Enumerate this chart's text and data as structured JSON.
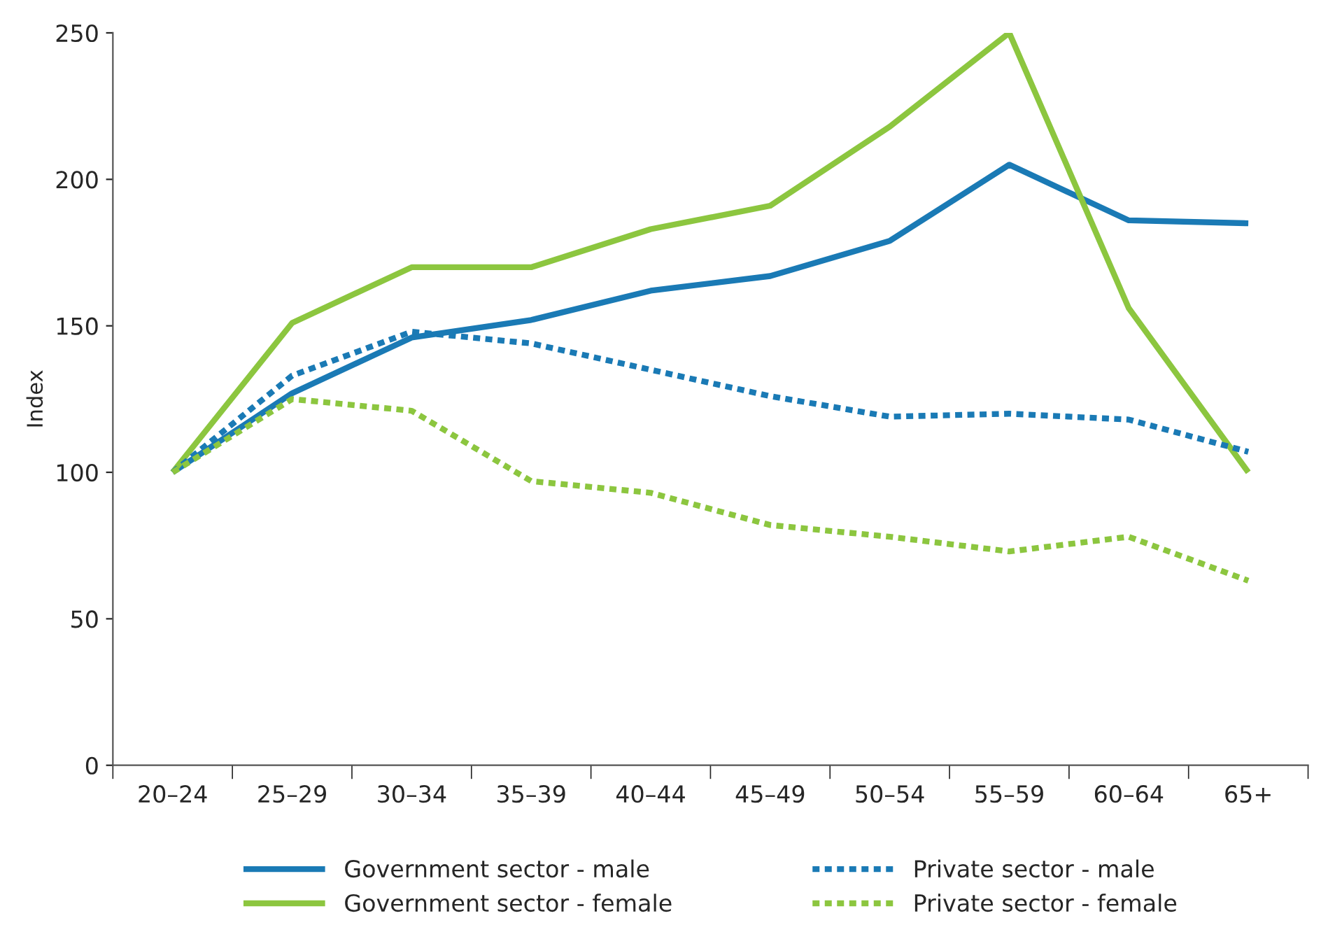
{
  "chart_data": {
    "type": "line",
    "ylabel": "Index",
    "categories": [
      "20–24",
      "25–29",
      "30–34",
      "35–39",
      "40–44",
      "45–49",
      "50–54",
      "55–59",
      "60–64",
      "65+"
    ],
    "series": [
      {
        "name": "Government sector - male",
        "color": "#1a7ab5",
        "line_style": "solid",
        "values": [
          100,
          127,
          146,
          152,
          162,
          167,
          179,
          205,
          186,
          185
        ]
      },
      {
        "name": "Government sector - female",
        "color": "#8cc63f",
        "line_style": "solid",
        "values": [
          100,
          151,
          170,
          170,
          183,
          191,
          218,
          250,
          156,
          100
        ]
      },
      {
        "name": "Private sector - male",
        "color": "#1a7ab5",
        "line_style": "dotted",
        "values": [
          100,
          133,
          148,
          144,
          135,
          126,
          119,
          120,
          118,
          107
        ]
      },
      {
        "name": "Private sector - female",
        "color": "#8cc63f",
        "line_style": "dotted",
        "values": [
          100,
          125,
          121,
          97,
          93,
          82,
          78,
          73,
          78,
          63
        ]
      }
    ],
    "ylim": [
      0,
      250
    ],
    "yticks": [
      0,
      50,
      100,
      150,
      200,
      250
    ],
    "grid": false,
    "legend": "bottom",
    "marker": "none"
  }
}
